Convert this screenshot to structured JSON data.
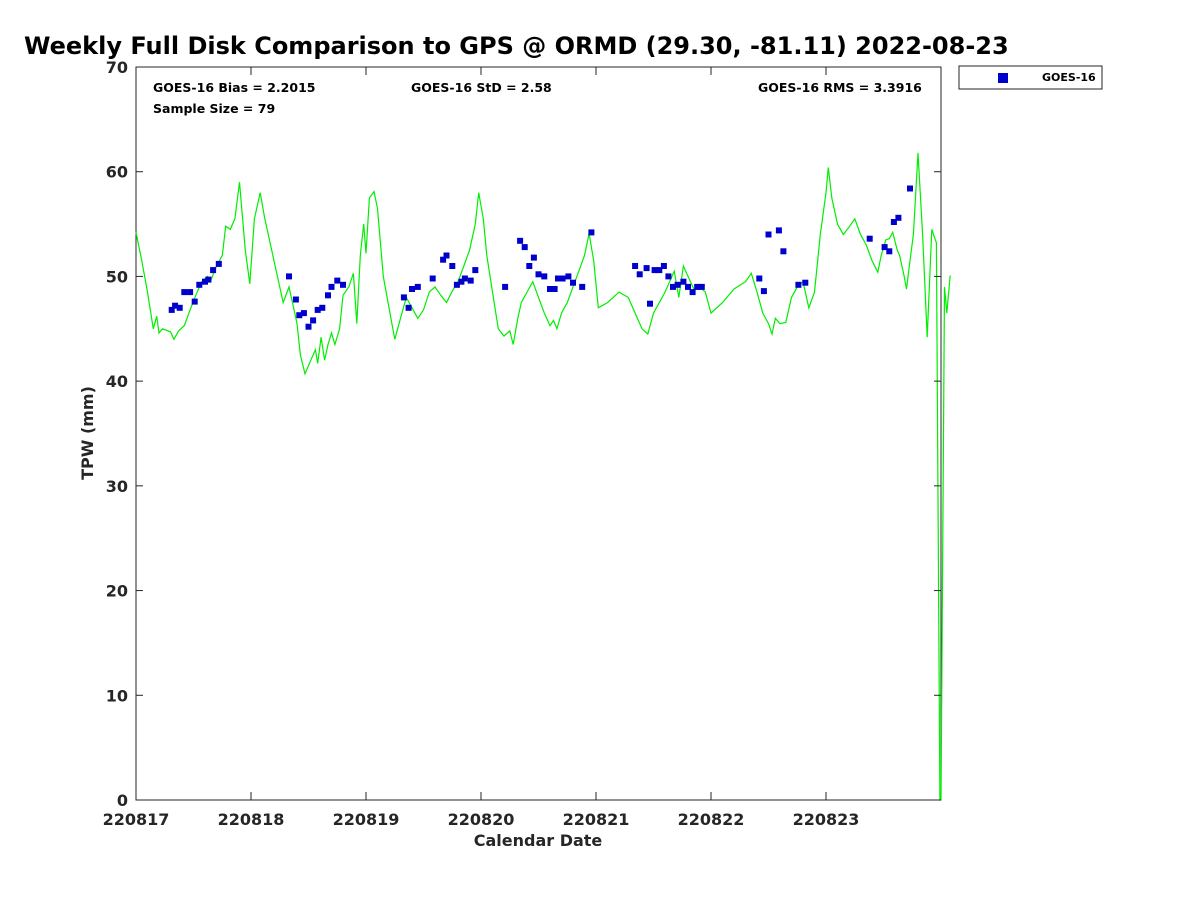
{
  "chart_data": {
    "type": "scatter",
    "title": "Weekly Full Disk Comparison to GPS @ ORMD (29.30, -81.11) 2022-08-23",
    "xlabel": "Calendar Date",
    "ylabel": "TPW (mm)",
    "xlim": [
      0,
      7
    ],
    "ylim": [
      0,
      70
    ],
    "x_ticks": [
      0,
      1,
      2,
      3,
      4,
      5,
      6
    ],
    "x_tick_labels": [
      "220817",
      "220818",
      "220819",
      "220820",
      "220821",
      "220822",
      "220823"
    ],
    "y_ticks": [
      0,
      10,
      20,
      30,
      40,
      50,
      60,
      70
    ],
    "grid": false,
    "legend": {
      "position": "top-right",
      "entries": [
        "GOES-16"
      ]
    },
    "stats": {
      "bias": "GOES-16 Bias = 2.2015",
      "std": "GOES-16 StD = 2.58",
      "rms": "GOES-16 RMS = 3.3916",
      "sample": "Sample Size = 79"
    },
    "series": [
      {
        "name": "GOES-16",
        "kind": "scatter",
        "color": "#0000cc",
        "points": [
          [
            0.31,
            46.8
          ],
          [
            0.34,
            47.2
          ],
          [
            0.38,
            47.0
          ],
          [
            0.42,
            48.5
          ],
          [
            0.47,
            48.5
          ],
          [
            0.51,
            47.6
          ],
          [
            0.55,
            49.2
          ],
          [
            0.6,
            49.5
          ],
          [
            0.63,
            49.7
          ],
          [
            0.67,
            50.6
          ],
          [
            0.72,
            51.2
          ],
          [
            1.33,
            50.0
          ],
          [
            1.39,
            47.8
          ],
          [
            1.42,
            46.3
          ],
          [
            1.46,
            46.5
          ],
          [
            1.5,
            45.2
          ],
          [
            1.54,
            45.8
          ],
          [
            1.58,
            46.8
          ],
          [
            1.62,
            47.0
          ],
          [
            1.67,
            48.2
          ],
          [
            1.7,
            49.0
          ],
          [
            1.75,
            49.6
          ],
          [
            1.8,
            49.2
          ],
          [
            2.33,
            48.0
          ],
          [
            2.37,
            47.0
          ],
          [
            2.4,
            48.8
          ],
          [
            2.45,
            49.0
          ],
          [
            2.58,
            49.8
          ],
          [
            2.67,
            51.6
          ],
          [
            2.7,
            52.0
          ],
          [
            2.75,
            51.0
          ],
          [
            2.79,
            49.2
          ],
          [
            2.83,
            49.5
          ],
          [
            2.86,
            49.8
          ],
          [
            2.91,
            49.6
          ],
          [
            2.95,
            50.6
          ],
          [
            3.21,
            49.0
          ],
          [
            3.34,
            53.4
          ],
          [
            3.38,
            52.8
          ],
          [
            3.42,
            51.0
          ],
          [
            3.46,
            51.8
          ],
          [
            3.5,
            50.2
          ],
          [
            3.55,
            50.0
          ],
          [
            3.6,
            48.8
          ],
          [
            3.64,
            48.8
          ],
          [
            3.67,
            49.8
          ],
          [
            3.71,
            49.8
          ],
          [
            3.76,
            50.0
          ],
          [
            3.8,
            49.4
          ],
          [
            3.88,
            49.0
          ],
          [
            3.96,
            54.2
          ],
          [
            4.34,
            51.0
          ],
          [
            4.38,
            50.2
          ],
          [
            4.44,
            50.8
          ],
          [
            4.47,
            47.4
          ],
          [
            4.51,
            50.6
          ],
          [
            4.55,
            50.6
          ],
          [
            4.59,
            51.0
          ],
          [
            4.63,
            50.0
          ],
          [
            4.67,
            49.0
          ],
          [
            4.71,
            49.2
          ],
          [
            4.76,
            49.5
          ],
          [
            4.8,
            49.0
          ],
          [
            4.84,
            48.5
          ],
          [
            4.88,
            49.0
          ],
          [
            4.92,
            49.0
          ],
          [
            5.42,
            49.8
          ],
          [
            5.46,
            48.6
          ],
          [
            5.5,
            54.0
          ],
          [
            5.59,
            54.4
          ],
          [
            5.63,
            52.4
          ],
          [
            5.76,
            49.2
          ],
          [
            5.82,
            49.4
          ],
          [
            6.38,
            53.6
          ],
          [
            6.51,
            52.8
          ],
          [
            6.55,
            52.4
          ],
          [
            6.59,
            55.2
          ],
          [
            6.63,
            55.6
          ],
          [
            6.73,
            58.4
          ]
        ]
      },
      {
        "name": "",
        "kind": "line",
        "color": "#00ee00",
        "points": [
          [
            0,
            54.2
          ],
          [
            0.05,
            51.5
          ],
          [
            0.1,
            48.5
          ],
          [
            0.15,
            45.0
          ],
          [
            0.18,
            46.2
          ],
          [
            0.2,
            44.6
          ],
          [
            0.23,
            45.0
          ],
          [
            0.3,
            44.7
          ],
          [
            0.33,
            44.0
          ],
          [
            0.37,
            44.8
          ],
          [
            0.42,
            45.3
          ],
          [
            0.47,
            46.8
          ],
          [
            0.52,
            48.2
          ],
          [
            0.57,
            49.5
          ],
          [
            0.62,
            50.0
          ],
          [
            0.65,
            49.6
          ],
          [
            0.7,
            51.0
          ],
          [
            0.75,
            52.0
          ],
          [
            0.78,
            54.8
          ],
          [
            0.82,
            54.5
          ],
          [
            0.86,
            55.5
          ],
          [
            0.9,
            59.0
          ],
          [
            0.95,
            52.5
          ],
          [
            0.99,
            49.3
          ],
          [
            1.03,
            55.5
          ],
          [
            1.08,
            58.0
          ],
          [
            1.12,
            55.5
          ],
          [
            1.2,
            51.5
          ],
          [
            1.28,
            47.5
          ],
          [
            1.33,
            49.0
          ],
          [
            1.37,
            47.0
          ],
          [
            1.4,
            45.5
          ],
          [
            1.43,
            42.5
          ],
          [
            1.47,
            40.7
          ],
          [
            1.52,
            42.0
          ],
          [
            1.56,
            43.0
          ],
          [
            1.58,
            41.7
          ],
          [
            1.61,
            44.2
          ],
          [
            1.64,
            42.0
          ],
          [
            1.67,
            43.5
          ],
          [
            1.7,
            44.6
          ],
          [
            1.73,
            43.5
          ],
          [
            1.77,
            45.0
          ],
          [
            1.8,
            48.2
          ],
          [
            1.85,
            49.0
          ],
          [
            1.89,
            50.3
          ],
          [
            1.92,
            45.5
          ],
          [
            1.95,
            52.0
          ],
          [
            1.98,
            55.0
          ],
          [
            2.0,
            52.2
          ],
          [
            2.03,
            57.5
          ],
          [
            2.07,
            58.1
          ],
          [
            2.1,
            56.5
          ],
          [
            2.15,
            50.0
          ],
          [
            2.2,
            47.0
          ],
          [
            2.25,
            44.0
          ],
          [
            2.3,
            46.0
          ],
          [
            2.35,
            48.0
          ],
          [
            2.4,
            47.0
          ],
          [
            2.45,
            46.0
          ],
          [
            2.5,
            46.8
          ],
          [
            2.55,
            48.5
          ],
          [
            2.6,
            49.0
          ],
          [
            2.65,
            48.2
          ],
          [
            2.7,
            47.5
          ],
          [
            2.75,
            48.6
          ],
          [
            2.8,
            49.5
          ],
          [
            2.85,
            51.0
          ],
          [
            2.9,
            52.5
          ],
          [
            2.95,
            55.0
          ],
          [
            2.98,
            58.0
          ],
          [
            3.02,
            55.5
          ],
          [
            3.05,
            52.0
          ],
          [
            3.1,
            48.5
          ],
          [
            3.15,
            45.0
          ],
          [
            3.2,
            44.3
          ],
          [
            3.25,
            44.8
          ],
          [
            3.28,
            43.5
          ],
          [
            3.32,
            46.0
          ],
          [
            3.35,
            47.5
          ],
          [
            3.4,
            48.5
          ],
          [
            3.45,
            49.5
          ],
          [
            3.5,
            48.0
          ],
          [
            3.55,
            46.5
          ],
          [
            3.6,
            45.3
          ],
          [
            3.63,
            45.8
          ],
          [
            3.66,
            45.0
          ],
          [
            3.7,
            46.5
          ],
          [
            3.75,
            47.5
          ],
          [
            3.8,
            49.0
          ],
          [
            3.85,
            50.5
          ],
          [
            3.9,
            52.0
          ],
          [
            3.94,
            54.1
          ],
          [
            3.98,
            51.5
          ],
          [
            4.02,
            47.0
          ],
          [
            4.1,
            47.5
          ],
          [
            4.2,
            48.5
          ],
          [
            4.28,
            48.0
          ],
          [
            4.32,
            47.0
          ],
          [
            4.36,
            46.0
          ],
          [
            4.4,
            45.0
          ],
          [
            4.45,
            44.5
          ],
          [
            4.5,
            46.5
          ],
          [
            4.55,
            47.5
          ],
          [
            4.6,
            48.5
          ],
          [
            4.64,
            49.5
          ],
          [
            4.68,
            50.5
          ],
          [
            4.72,
            48.0
          ],
          [
            4.76,
            51.0
          ],
          [
            4.8,
            50.0
          ],
          [
            4.85,
            48.8
          ],
          [
            4.9,
            49.0
          ],
          [
            4.95,
            48.5
          ],
          [
            5.0,
            46.5
          ],
          [
            5.1,
            47.5
          ],
          [
            5.2,
            48.8
          ],
          [
            5.3,
            49.5
          ],
          [
            5.35,
            50.3
          ],
          [
            5.4,
            48.5
          ],
          [
            5.45,
            46.5
          ],
          [
            5.5,
            45.5
          ],
          [
            5.53,
            44.5
          ],
          [
            5.56,
            46.0
          ],
          [
            5.6,
            45.5
          ],
          [
            5.65,
            45.6
          ],
          [
            5.7,
            48.0
          ],
          [
            5.75,
            49.0
          ],
          [
            5.8,
            49.5
          ],
          [
            5.85,
            47.0
          ],
          [
            5.9,
            48.5
          ],
          [
            5.95,
            54.0
          ],
          [
            6.0,
            58.0
          ],
          [
            6.02,
            60.4
          ],
          [
            6.05,
            57.5
          ],
          [
            6.1,
            55.0
          ],
          [
            6.15,
            54.0
          ],
          [
            6.2,
            54.7
          ],
          [
            6.25,
            55.5
          ],
          [
            6.3,
            54.0
          ],
          [
            6.35,
            53.0
          ],
          [
            6.4,
            51.5
          ],
          [
            6.45,
            50.4
          ],
          [
            6.48,
            52.0
          ],
          [
            6.52,
            53.5
          ],
          [
            6.55,
            53.6
          ],
          [
            6.58,
            54.2
          ],
          [
            6.62,
            52.5
          ],
          [
            6.64,
            52.0
          ],
          [
            6.68,
            50.0
          ],
          [
            6.7,
            48.8
          ],
          [
            6.73,
            51.5
          ],
          [
            6.76,
            54.0
          ],
          [
            6.8,
            61.8
          ],
          [
            6.84,
            54.0
          ],
          [
            6.88,
            44.2
          ],
          [
            6.92,
            54.5
          ],
          [
            6.96,
            53.2
          ],
          [
            6.99,
            0
          ],
          [
            7.0,
            0
          ],
          [
            7.03,
            49.0
          ],
          [
            7.05,
            46.5
          ],
          [
            7.08,
            50.1
          ]
        ]
      }
    ]
  }
}
